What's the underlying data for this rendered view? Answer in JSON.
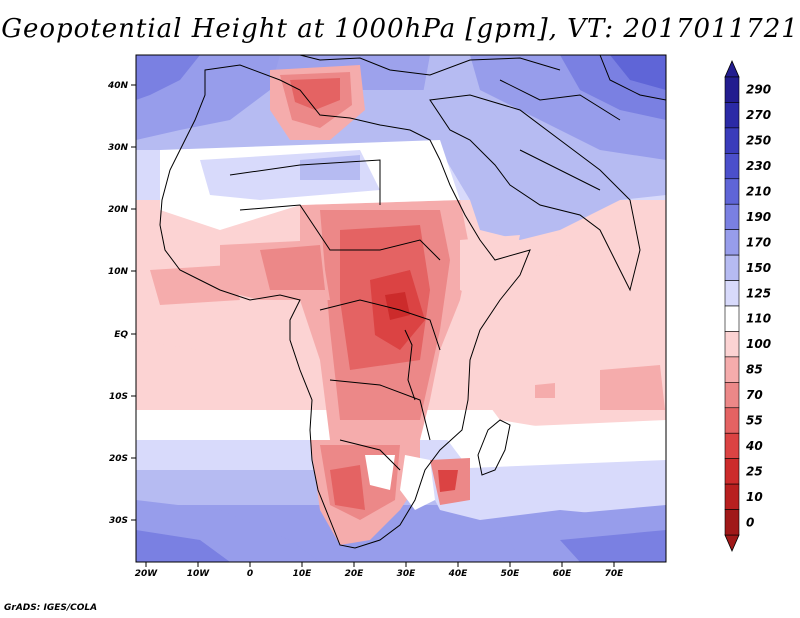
{
  "title": "Geopotential Height at 1000hPa [gpm], VT: 2017011721",
  "credit": "GrADS: IGES/COLA",
  "axes": {
    "lon_labels": [
      "20W",
      "10W",
      "0",
      "10E",
      "20E",
      "30E",
      "40E",
      "50E",
      "60E",
      "70E"
    ],
    "lat_labels": [
      "40N",
      "30N",
      "20N",
      "10N",
      "EQ",
      "10S",
      "20S",
      "30S"
    ]
  },
  "colorbar": {
    "labels": [
      "290",
      "270",
      "250",
      "230",
      "210",
      "190",
      "170",
      "150",
      "125",
      "110",
      "100",
      "85",
      "70",
      "55",
      "40",
      "25",
      "10",
      "0"
    ],
    "colors": [
      "#231d8f",
      "#2b2aa6",
      "#3a3cbb",
      "#4b4fcb",
      "#5f65d7",
      "#7a80e2",
      "#979deb",
      "#b6bbf2",
      "#d8dafb",
      "#ffffff",
      "#fcd3d3",
      "#f5acac",
      "#ec8888",
      "#e46363",
      "#db4343",
      "#cc2b2b",
      "#b81f1f",
      "#a01818"
    ]
  }
}
